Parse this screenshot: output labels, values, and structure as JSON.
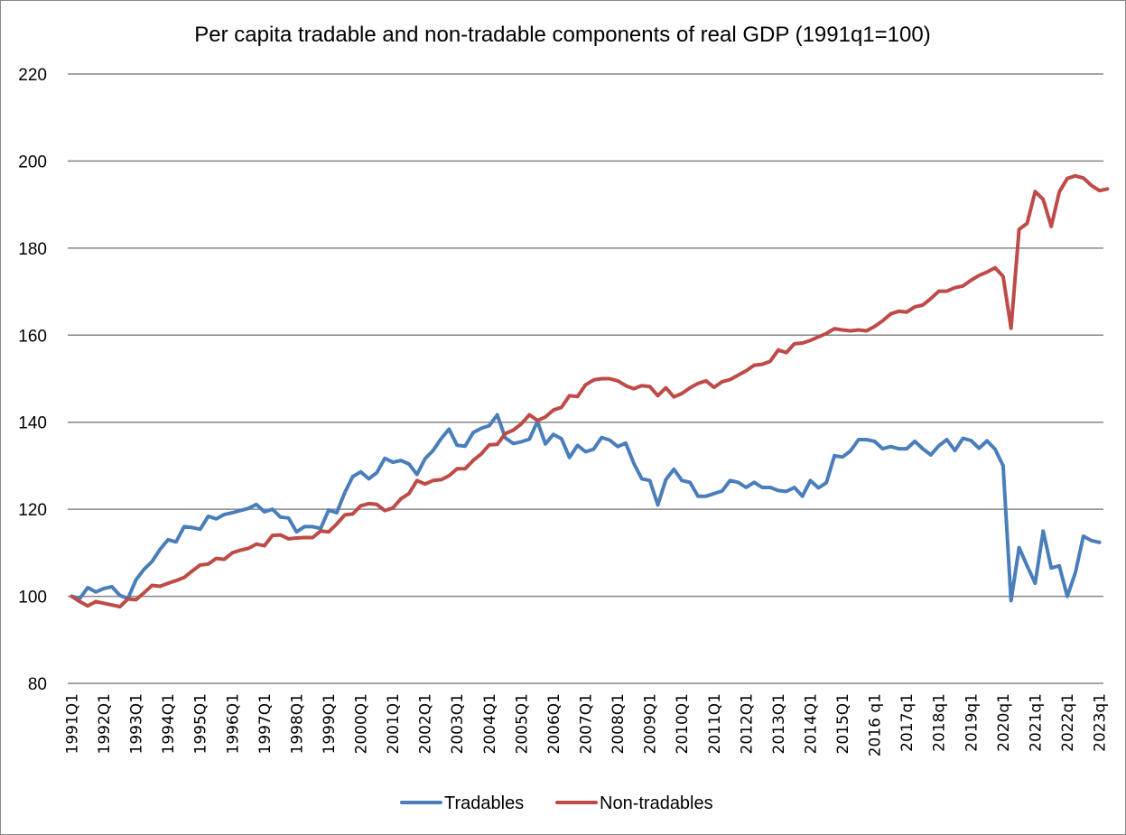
{
  "chart_data": {
    "type": "line",
    "title": "Per capita tradable and non-tradable components of  real GDP  (1991q1=100)",
    "xlabel": "",
    "ylabel": "",
    "ylim": [
      80,
      220
    ],
    "yticks": [
      80,
      100,
      120,
      140,
      160,
      180,
      200,
      220
    ],
    "grid": true,
    "legend_position": "bottom",
    "x_tick_labels": [
      "1991Q1",
      "1992Q1",
      "1993Q1",
      "1994Q1",
      "1995Q1",
      "1996Q1",
      "1997Q1",
      "1998Q1",
      "1999Q1",
      "2000Q1",
      "2001Q1",
      "2002Q1",
      "2003Q1",
      "2004Q1",
      "2005Q1",
      "2006Q1",
      "2007Q1",
      "2008Q1",
      "2009Q1",
      "2010Q1",
      "2011Q1",
      "2012Q1",
      "2013Q1",
      "2014Q1",
      "2015Q1",
      "2016 q1",
      "2017q1",
      "2018q1",
      "2019q1",
      "2020q1",
      "2021q1",
      "2022q1",
      "2023q1"
    ],
    "x_start": "1991Q1",
    "x_end": "2023Q1",
    "frequency": "quarterly",
    "series": [
      {
        "name": "Tradables",
        "color": "#4a7ebb",
        "values": [
          100,
          99.5,
          102,
          101,
          101.8,
          102.2,
          100.2,
          99.5,
          103.8,
          106.2,
          108,
          110.8,
          113,
          112.5,
          116,
          115.8,
          115.4,
          118.4,
          117.8,
          118.8,
          119.2,
          119.7,
          120.2,
          121.1,
          119.4,
          120,
          118.2,
          118,
          114.8,
          116,
          116,
          115.6,
          119.8,
          119.2,
          123.8,
          127.5,
          128.6,
          127,
          128.4,
          131.7,
          130.8,
          131.2,
          130.4,
          128,
          131.6,
          133.5,
          136.2,
          138.4,
          134.7,
          134.5,
          137.6,
          138.6,
          139.2,
          141.7,
          136.4,
          135.1,
          135.5,
          136.1,
          140.2,
          135,
          137.2,
          136.2,
          131.9,
          134.7,
          133.2,
          133.8,
          136.5,
          135.9,
          134.4,
          135.2,
          130.6,
          127,
          126.6,
          121,
          126.8,
          129.2,
          126.6,
          126.2,
          123,
          123,
          123.6,
          124.2,
          126.6,
          126.2,
          125,
          126.2,
          125,
          125,
          124.3,
          124.1,
          125,
          123,
          126.6,
          124.9,
          126.1,
          132.3,
          132,
          133.4,
          136,
          136,
          135.6,
          133.9,
          134.4,
          133.9,
          133.9,
          135.6,
          133.9,
          132.5,
          134.6,
          136,
          133.5,
          136.3,
          135.8,
          134,
          135.7,
          133.8,
          130,
          99,
          111.2,
          107,
          103,
          115,
          106.5,
          107,
          100,
          105.4,
          113.8,
          112.8,
          112.4
        ]
      },
      {
        "name": "Non-tradables",
        "color": "#be4b48",
        "values": [
          100,
          98.8,
          97.8,
          98.8,
          98.4,
          98,
          97.6,
          99.4,
          99.2,
          100.8,
          102.5,
          102.3,
          103,
          103.6,
          104.3,
          105.8,
          107.2,
          107.4,
          108.7,
          108.5,
          110,
          110.6,
          111,
          112,
          111.6,
          114,
          114.1,
          113.2,
          113.4,
          113.5,
          113.5,
          115,
          114.8,
          116.6,
          118.7,
          118.9,
          120.8,
          121.3,
          121.1,
          119.7,
          120.3,
          122.4,
          123.6,
          126.6,
          125.8,
          126.6,
          126.8,
          127.7,
          129.3,
          129.3,
          131.2,
          132.7,
          134.8,
          134.9,
          137.4,
          138.2,
          139.6,
          141.7,
          140.4,
          141.2,
          142.8,
          143.4,
          146.1,
          145.9,
          148.6,
          149.7,
          150,
          150,
          149.5,
          148.4,
          147.7,
          148.4,
          148.2,
          146.1,
          147.9,
          145.8,
          146.6,
          147.9,
          148.9,
          149.5,
          148,
          149.3,
          149.8,
          150.8,
          151.8,
          153.1,
          153.3,
          154,
          156.6,
          156,
          158,
          158.2,
          158.8,
          159.6,
          160.4,
          161.5,
          161.2,
          161,
          161.2,
          161,
          162,
          163.3,
          164.9,
          165.5,
          165.3,
          166.5,
          166.9,
          168.4,
          170.1,
          170.1,
          170.9,
          171.3,
          172.6,
          173.7,
          174.5,
          175.5,
          173.5,
          161.6,
          184.3,
          185.7,
          193,
          191.2,
          185,
          192.9,
          196,
          196.6,
          196.1,
          194.4,
          193.2,
          193.6
        ]
      }
    ]
  }
}
